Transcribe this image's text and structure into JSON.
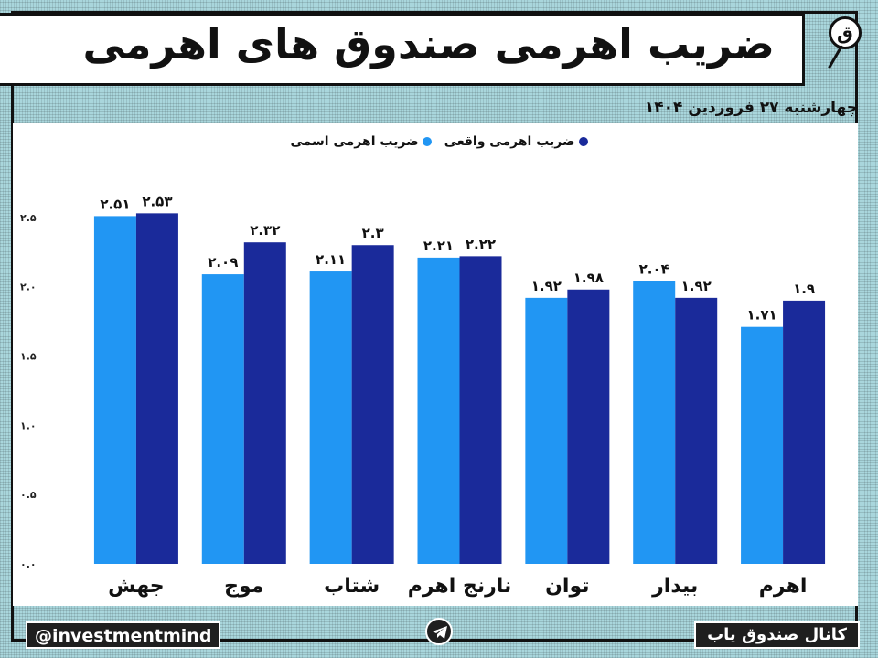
{
  "title": "ضریب اهرمی صندوق های اهرمی",
  "date": "چهارشنبه ۲۷ فروردین ۱۴۰۴",
  "footer": {
    "handle": "@investmentmind",
    "channel": "کانال صندوق یاب"
  },
  "colors": {
    "nominal": "#2196f3",
    "real": "#1a2a9a",
    "background": "#a9d6dc"
  },
  "icons": {
    "logo": "magnifier-logo-icon",
    "telegram": "telegram-icon"
  },
  "chart_data": {
    "type": "bar",
    "categories": [
      "جهش",
      "موج",
      "شتاب",
      "نارنج اهرم",
      "توان",
      "بیدار",
      "اهرم"
    ],
    "series": [
      {
        "name": "ضریب اهرمی اسمی",
        "values": [
          2.51,
          2.09,
          2.11,
          2.21,
          1.92,
          2.04,
          1.71
        ],
        "labels": [
          "۲.۵۱",
          "۲.۰۹",
          "۲.۱۱",
          "۲.۲۱",
          "۱.۹۲",
          "۲.۰۴",
          "۱.۷۱"
        ]
      },
      {
        "name": "ضریب اهرمی واقعی",
        "values": [
          2.53,
          2.32,
          2.3,
          2.22,
          1.98,
          1.92,
          1.9
        ],
        "labels": [
          "۲.۵۳",
          "۲.۳۲",
          "۲.۳",
          "۲.۲۲",
          "۱.۹۸",
          "۱.۹۲",
          "۱.۹"
        ]
      }
    ],
    "yticks": [
      "۰.۰",
      "۰.۵",
      "۱.۰",
      "۱.۵",
      "۲.۰",
      "۲.۵"
    ],
    "ylim": [
      0,
      2.75
    ],
    "legend_position": "top-center",
    "grid": false
  }
}
